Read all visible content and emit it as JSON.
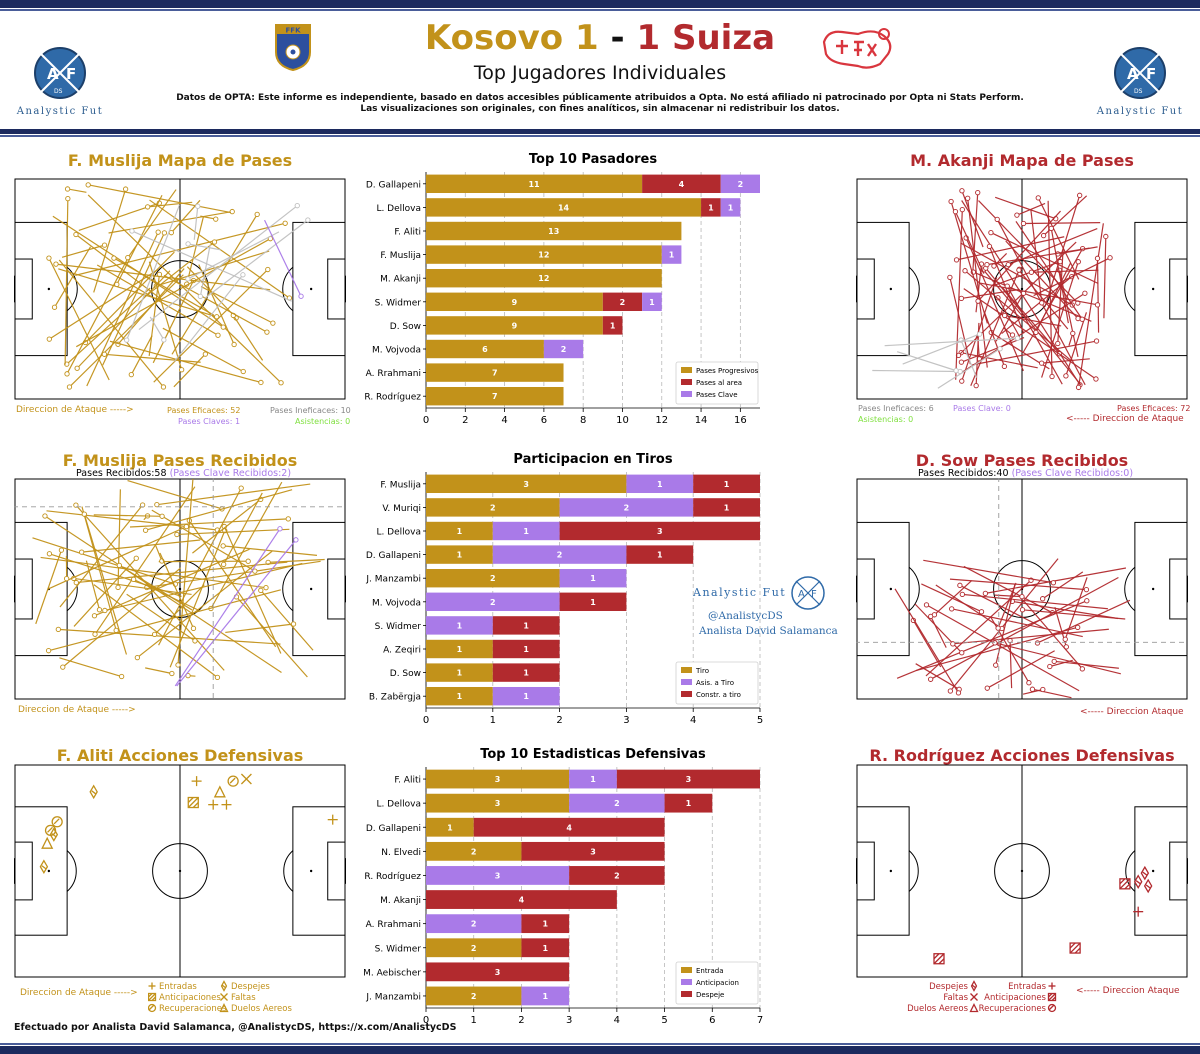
{
  "header": {
    "home_team": "Kosovo",
    "home_score": "1",
    "separator": "-",
    "away_score": "1",
    "away_team": "Suiza",
    "subtitle": "Top Jugadores Individuales",
    "disclaimer_line1": "Datos de OPTA: Este informe es independiente, basado en datos accesibles públicamente atribuidos a Opta. No está afiliado ni patrocinado por Opta ni Stats Perform.",
    "disclaimer_line2": "Las visualizaciones son originales, con fines analíticos, sin almacenar ni redistribuir los datos.",
    "brand_left": "Analystic Fut",
    "brand_right": "Analystic Fut",
    "home_badge_text": "FFK",
    "logo_letters": {
      "a": "A",
      "f": "F",
      "ds": "DS"
    }
  },
  "colors": {
    "gold": "#c2921a",
    "red": "#b22a2e",
    "purple": "#a97ae8",
    "grey": "#c0c0c0",
    "navy": "#1c2a5e"
  },
  "panels": {
    "muslija_passes": {
      "title": "F. Muslija Mapa de Pases",
      "direction": "Direccion de Ataque ----->",
      "successful": "Pases Eficaces: 52",
      "unsuccessful": "Pases Ineficaces: 10",
      "key": "Pases Claves: 1",
      "assists": "Asistencias: 0"
    },
    "akanji_passes": {
      "title": "M. Akanji Mapa de Pases",
      "direction": "<----- Direccion de Ataque",
      "successful": "Pases Eficaces: 72",
      "unsuccessful": "Pases Ineficaces: 6",
      "key": "Pases Clave: 0",
      "assists": "Asistencias: 0"
    },
    "muslija_received": {
      "title": "F. Muslija Pases Recibidos",
      "received": "Pases Recibidos:58",
      "key_received": "(Pases Clave Recibidos:2)",
      "direction": "Direccion de Ataque ----->"
    },
    "sow_received": {
      "title": "D. Sow Pases Recibidos",
      "received": "Pases Recibidos:40",
      "key_received": "(Pases Clave Recibidos:0)",
      "direction": "<----- Direccion Ataque"
    },
    "aliti_defense": {
      "title": "F. Aliti Acciones Defensivas",
      "direction": "Direccion de Ataque ----->",
      "legend": [
        "Entradas",
        "Despejes",
        "Anticipaciones",
        "Faltas",
        "Recuperaciones",
        "Duelos Aereos"
      ]
    },
    "rodriguez_defense": {
      "title": "R. Rodríguez Acciones Defensivas",
      "direction": "<----- Direccion Ataque",
      "legend": [
        "Despejes",
        "Entradas",
        "Faltas",
        "Anticipaciones",
        "Duelos Aereos",
        "Recuperaciones"
      ]
    }
  },
  "watermark": {
    "brand": "Analystic Fut",
    "handle": "@AnalistycDS",
    "analyst": "Analista David Salamanca"
  },
  "footer": "Efectuado por Analista David Salamanca, @AnalistycDS, https://x.com/AnalistycDS",
  "chart_data": [
    {
      "type": "bar",
      "orientation": "horizontal",
      "stacked": true,
      "title": "Top 10 Pasadores",
      "categories": [
        "D. Gallapeni",
        "L. Dellova",
        "F. Aliti",
        "F. Muslija",
        "M. Akanji",
        "S. Widmer",
        "D. Sow",
        "M. Vojvoda",
        "A. Rrahmani",
        "R. Rodríguez"
      ],
      "series": [
        {
          "name": "Pases Progresivos",
          "color": "#c2921a",
          "values": [
            11,
            14,
            13,
            12,
            12,
            9,
            9,
            6,
            7,
            7
          ]
        },
        {
          "name": "Pases al area",
          "color": "#b22a2e",
          "values": [
            4,
            1,
            0,
            0,
            0,
            2,
            1,
            0,
            0,
            0
          ]
        },
        {
          "name": "Pases Clave",
          "color": "#a97ae8",
          "values": [
            2,
            1,
            0,
            1,
            0,
            1,
            0,
            2,
            0,
            0
          ]
        }
      ],
      "xlim": [
        0,
        17
      ],
      "xticks": [
        0,
        2,
        4,
        6,
        8,
        10,
        12,
        14,
        16
      ],
      "grid": "vertical-dashed",
      "legend": "bottom-right"
    },
    {
      "type": "bar",
      "orientation": "horizontal",
      "stacked": true,
      "title": "Participacion en Tiros",
      "categories": [
        "F. Muslija",
        "V. Muriqi",
        "L. Dellova",
        "D. Gallapeni",
        "J. Manzambi",
        "M. Vojvoda",
        "S. Widmer",
        "A. Zeqiri",
        "D. Sow",
        "B. Zabërgja"
      ],
      "series": [
        {
          "name": "Tiro",
          "color": "#c2921a",
          "values": [
            3,
            2,
            1,
            1,
            2,
            0,
            0,
            1,
            1,
            1
          ]
        },
        {
          "name": "Asis. a Tiro",
          "color": "#a97ae8",
          "values": [
            1,
            2,
            1,
            2,
            1,
            2,
            1,
            0,
            0,
            1
          ]
        },
        {
          "name": "Constr. a tiro",
          "color": "#b22a2e",
          "values": [
            1,
            1,
            3,
            1,
            0,
            1,
            1,
            1,
            1,
            0
          ]
        }
      ],
      "xlim": [
        0,
        5
      ],
      "xticks": [
        0,
        1,
        2,
        3,
        4,
        5
      ],
      "grid": "vertical-dashed",
      "legend": "bottom-right"
    },
    {
      "type": "bar",
      "orientation": "horizontal",
      "stacked": true,
      "title": "Top 10 Estadisticas Defensivas",
      "categories": [
        "F. Aliti",
        "L. Dellova",
        "D. Gallapeni",
        "N. Elvedi",
        "R. Rodríguez",
        "M. Akanji",
        "A. Rrahmani",
        "S. Widmer",
        "M. Aebischer",
        "J. Manzambi"
      ],
      "series": [
        {
          "name": "Entrada",
          "color": "#c2921a",
          "values": [
            3,
            3,
            1,
            2,
            0,
            0,
            0,
            2,
            0,
            2
          ]
        },
        {
          "name": "Anticipacion",
          "color": "#a97ae8",
          "values": [
            1,
            2,
            0,
            0,
            3,
            0,
            2,
            0,
            0,
            1
          ]
        },
        {
          "name": "Despeje",
          "color": "#b22a2e",
          "values": [
            3,
            1,
            4,
            3,
            2,
            4,
            1,
            1,
            3,
            0
          ]
        }
      ],
      "xlim": [
        0,
        7
      ],
      "xticks": [
        0,
        1,
        2,
        3,
        4,
        5,
        6,
        7
      ],
      "grid": "vertical-dashed",
      "legend": "bottom-right"
    }
  ]
}
